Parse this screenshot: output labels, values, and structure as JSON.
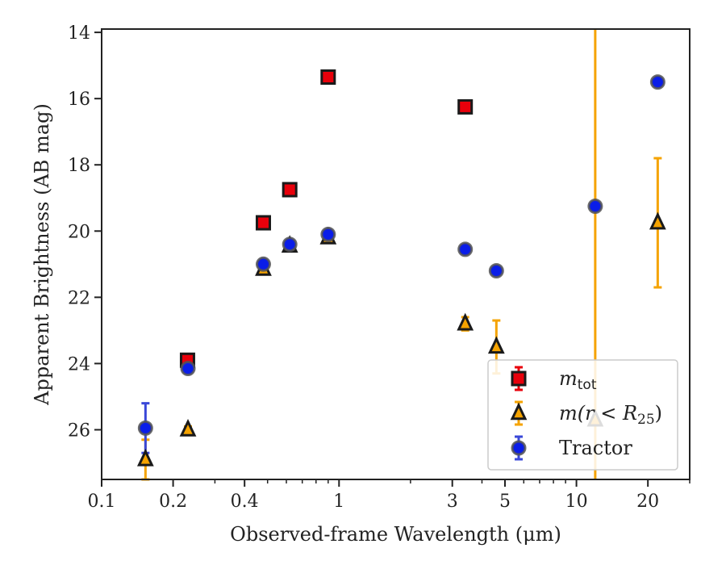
{
  "chart_data": {
    "type": "scatter",
    "title": "",
    "xlabel": "Observed-frame Wavelength (μm)",
    "ylabel": "Apparent Brightness (AB mag)",
    "xscale": "log",
    "xlim": [
      0.1,
      30
    ],
    "ylim": [
      27.5,
      13.9
    ],
    "y_inverted": true,
    "grid": false,
    "legend_position": "lower-right",
    "x_ticks": [
      {
        "value": 0.1,
        "label": "0.1"
      },
      {
        "value": 0.2,
        "label": "0.2"
      },
      {
        "value": 0.4,
        "label": "0.4"
      },
      {
        "value": 1,
        "label": "1"
      },
      {
        "value": 3,
        "label": "3"
      },
      {
        "value": 5,
        "label": "5"
      },
      {
        "value": 10,
        "label": "10"
      },
      {
        "value": 20,
        "label": "20"
      }
    ],
    "y_ticks": [
      {
        "value": 14,
        "label": "14"
      },
      {
        "value": 16,
        "label": "16"
      },
      {
        "value": 18,
        "label": "18"
      },
      {
        "value": 20,
        "label": "20"
      },
      {
        "value": 22,
        "label": "22"
      },
      {
        "value": 24,
        "label": "24"
      },
      {
        "value": 26,
        "label": "26"
      }
    ],
    "series": [
      {
        "key": "mtot",
        "name_main": "m",
        "name_sub": "tot",
        "marker": "square",
        "face_color": "#e8000b",
        "error_color": "#e8000b",
        "points": [
          {
            "x": 0.23,
            "y": 23.9,
            "err": 0.1
          },
          {
            "x": 0.48,
            "y": 19.75,
            "err": 0.05
          },
          {
            "x": 0.62,
            "y": 18.75,
            "err": 0.05
          },
          {
            "x": 0.9,
            "y": 15.35,
            "err": 0.05
          },
          {
            "x": 3.4,
            "y": 16.25,
            "err": 0.05
          }
        ]
      },
      {
        "key": "mr25",
        "name_text": "m(r < R",
        "name_sub": "25",
        "name_end": ")",
        "marker": "triangle",
        "face_color": "#f5a300",
        "error_color": "#f5a300",
        "points": [
          {
            "x": 0.153,
            "y": 26.9,
            "err": 0.6
          },
          {
            "x": 0.231,
            "y": 26.0,
            "err": 0.1
          },
          {
            "x": 0.48,
            "y": 21.15,
            "err": 0.05
          },
          {
            "x": 0.62,
            "y": 20.45,
            "err": 0.05
          },
          {
            "x": 0.9,
            "y": 20.2,
            "err": 0.05
          },
          {
            "x": 3.4,
            "y": 22.8,
            "err": 0.2
          },
          {
            "x": 4.6,
            "y": 23.5,
            "err": 0.8
          },
          {
            "x": 12.0,
            "y": 25.7,
            "err": 12.0
          },
          {
            "x": 22.0,
            "y": 19.75,
            "err": 1.95
          }
        ]
      },
      {
        "key": "tractor",
        "name_text": "Tractor",
        "marker": "circle",
        "face_color": "#0a1de8",
        "error_color": "#3a48d8",
        "points": [
          {
            "x": 0.153,
            "y": 25.95,
            "err": 0.75
          },
          {
            "x": 0.231,
            "y": 24.15,
            "err": 0.1
          },
          {
            "x": 0.48,
            "y": 21.0,
            "err": 0.05
          },
          {
            "x": 0.62,
            "y": 20.4,
            "err": 0.05
          },
          {
            "x": 0.9,
            "y": 20.1,
            "err": 0.05
          },
          {
            "x": 3.4,
            "y": 20.55,
            "err": 0.05
          },
          {
            "x": 4.6,
            "y": 21.2,
            "err": 0.05
          },
          {
            "x": 12.0,
            "y": 19.25,
            "err": 0.05
          },
          {
            "x": 22.0,
            "y": 15.5,
            "err": 0.05
          }
        ]
      }
    ]
  }
}
